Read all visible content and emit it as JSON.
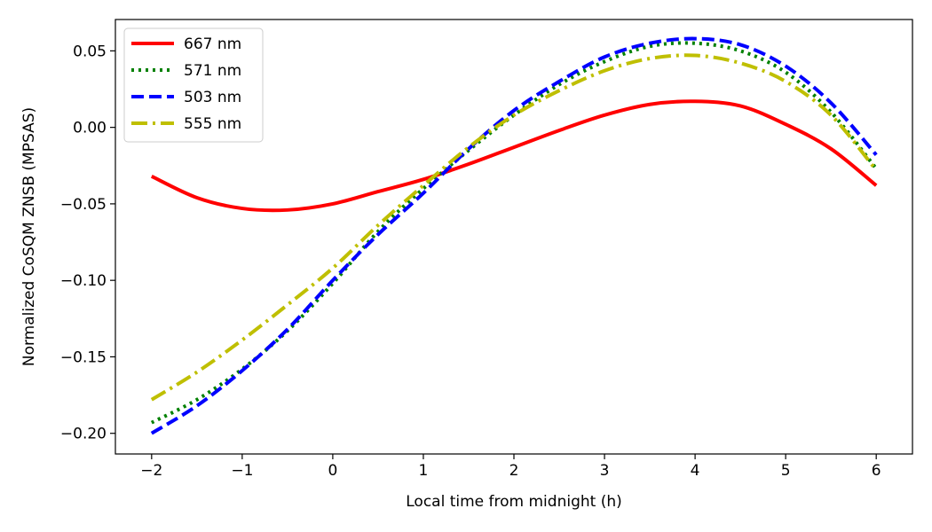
{
  "chart_data": {
    "type": "line",
    "title": "",
    "xlabel": "Local time from midnight (h)",
    "ylabel": "Normalized CoSQM ZNSB (MPSAS)",
    "xlim": [
      -2.4,
      6.4
    ],
    "ylim": [
      -0.2135,
      0.0705
    ],
    "xticks": [
      -2,
      -1,
      0,
      1,
      2,
      3,
      4,
      5,
      6
    ],
    "xtick_labels": [
      "−2",
      "−1",
      "0",
      "1",
      "2",
      "3",
      "4",
      "5",
      "6"
    ],
    "yticks": [
      -0.2,
      -0.15,
      -0.1,
      -0.05,
      0.0,
      0.05
    ],
    "ytick_labels": [
      "−0.20",
      "−0.15",
      "−0.10",
      "−0.05",
      "0.00",
      "0.05"
    ],
    "grid": false,
    "legend_position": "upper-left",
    "series": [
      {
        "name": "667 nm",
        "color": "#ff0000",
        "style": "solid",
        "x": [
          -2,
          -1.5,
          -1,
          -0.5,
          0,
          0.5,
          1,
          1.5,
          2,
          2.5,
          3,
          3.5,
          4,
          4.5,
          5,
          5.5,
          6
        ],
        "y": [
          -0.032,
          -0.046,
          -0.053,
          -0.054,
          -0.05,
          -0.042,
          -0.034,
          -0.024,
          -0.013,
          -0.002,
          0.008,
          0.015,
          0.017,
          0.014,
          0.002,
          -0.014,
          -0.038
        ]
      },
      {
        "name": "571 nm",
        "color": "#008000",
        "style": "dotted",
        "x": [
          -2,
          -1.5,
          -1,
          -0.5,
          0,
          0.5,
          1,
          1.5,
          2,
          2.5,
          3,
          3.5,
          4,
          4.5,
          5,
          5.5,
          6
        ],
        "y": [
          -0.193,
          -0.178,
          -0.158,
          -0.133,
          -0.102,
          -0.068,
          -0.04,
          -0.015,
          0.008,
          0.028,
          0.043,
          0.053,
          0.055,
          0.05,
          0.036,
          0.01,
          -0.027
        ]
      },
      {
        "name": "503 nm",
        "color": "#0000ff",
        "style": "dashed",
        "x": [
          -2,
          -1.5,
          -1,
          -0.5,
          0,
          0.5,
          1,
          1.5,
          2,
          2.5,
          3,
          3.5,
          4,
          4.5,
          5,
          5.5,
          6
        ],
        "y": [
          -0.2,
          -0.182,
          -0.159,
          -0.132,
          -0.1,
          -0.07,
          -0.043,
          -0.014,
          0.011,
          0.03,
          0.046,
          0.055,
          0.058,
          0.054,
          0.04,
          0.016,
          -0.018
        ]
      },
      {
        "name": "555 nm",
        "color": "#bfbf00",
        "style": "dashdot",
        "x": [
          -2,
          -1.5,
          -1,
          -0.5,
          0,
          0.5,
          1,
          1.5,
          2,
          2.5,
          3,
          3.5,
          4,
          4.5,
          5,
          5.5,
          6
        ],
        "y": [
          -0.178,
          -0.16,
          -0.139,
          -0.116,
          -0.092,
          -0.064,
          -0.038,
          -0.013,
          0.008,
          0.024,
          0.037,
          0.045,
          0.047,
          0.042,
          0.03,
          0.008,
          -0.028
        ]
      }
    ]
  }
}
